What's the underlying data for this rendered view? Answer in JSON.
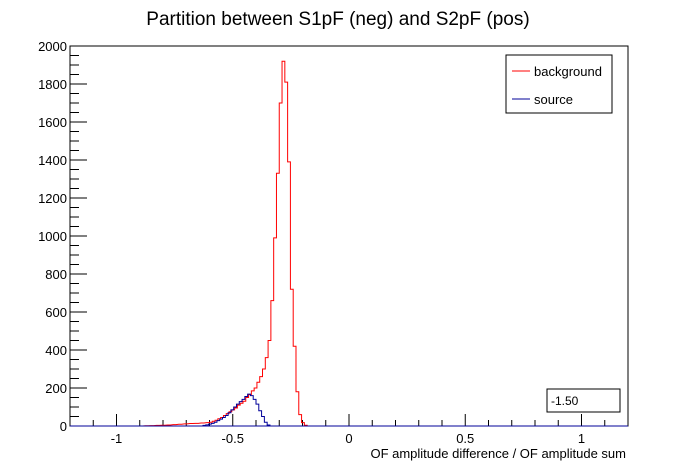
{
  "chart_data": {
    "type": "histogram",
    "title": "Partition between S1pF (neg) and S2pF (pos)",
    "xlabel": "OF amplitude difference / OF amplitude sum",
    "ylabel": "",
    "xlim": [
      -1.2,
      1.2
    ],
    "ylim": [
      0,
      2000
    ],
    "x_ticks": [
      -1,
      -0.5,
      0,
      0.5,
      1
    ],
    "x_tick_labels": [
      "-1",
      "-0.5",
      "0",
      "0.5",
      "1"
    ],
    "y_ticks": [
      0,
      200,
      400,
      600,
      800,
      1000,
      1200,
      1400,
      1600,
      1800,
      2000
    ],
    "y_tick_labels": [
      "0",
      "200",
      "400",
      "600",
      "800",
      "1000",
      "1200",
      "1400",
      "1600",
      "1800",
      "2000"
    ],
    "bin_width": 0.012,
    "legend": {
      "placement": "top-right",
      "entries": [
        "background",
        "source"
      ]
    },
    "annotation": "-1.50",
    "colors": {
      "background": "#ff0000",
      "source": "#000099",
      "axis": "#000000"
    },
    "series": [
      {
        "name": "background",
        "color": "#ff0000",
        "points": [
          [
            -0.9,
            0
          ],
          [
            -0.876,
            1
          ],
          [
            -0.852,
            2
          ],
          [
            -0.828,
            3
          ],
          [
            -0.804,
            4
          ],
          [
            -0.78,
            5
          ],
          [
            -0.756,
            7
          ],
          [
            -0.732,
            9
          ],
          [
            -0.708,
            11
          ],
          [
            -0.684,
            13
          ],
          [
            -0.66,
            14
          ],
          [
            -0.636,
            16
          ],
          [
            -0.612,
            18
          ],
          [
            -0.6,
            20
          ],
          [
            -0.588,
            25
          ],
          [
            -0.576,
            30
          ],
          [
            -0.564,
            38
          ],
          [
            -0.552,
            45
          ],
          [
            -0.54,
            55
          ],
          [
            -0.528,
            65
          ],
          [
            -0.516,
            75
          ],
          [
            -0.504,
            85
          ],
          [
            -0.492,
            95
          ],
          [
            -0.48,
            110
          ],
          [
            -0.468,
            120
          ],
          [
            -0.456,
            130
          ],
          [
            -0.444,
            150
          ],
          [
            -0.432,
            165
          ],
          [
            -0.42,
            185
          ],
          [
            -0.408,
            200
          ],
          [
            -0.396,
            230
          ],
          [
            -0.384,
            260
          ],
          [
            -0.372,
            300
          ],
          [
            -0.36,
            360
          ],
          [
            -0.348,
            450
          ],
          [
            -0.336,
            660
          ],
          [
            -0.324,
            990
          ],
          [
            -0.312,
            1330
          ],
          [
            -0.3,
            1700
          ],
          [
            -0.288,
            1920
          ],
          [
            -0.276,
            1810
          ],
          [
            -0.264,
            1390
          ],
          [
            -0.252,
            720
          ],
          [
            -0.24,
            420
          ],
          [
            -0.228,
            180
          ],
          [
            -0.216,
            60
          ],
          [
            -0.204,
            18
          ],
          [
            -0.192,
            4
          ],
          [
            -0.18,
            0
          ]
        ]
      },
      {
        "name": "source",
        "color": "#000099",
        "points": [
          [
            -0.64,
            0
          ],
          [
            -0.628,
            3
          ],
          [
            -0.616,
            6
          ],
          [
            -0.604,
            10
          ],
          [
            -0.592,
            14
          ],
          [
            -0.58,
            20
          ],
          [
            -0.568,
            28
          ],
          [
            -0.556,
            36
          ],
          [
            -0.544,
            45
          ],
          [
            -0.532,
            55
          ],
          [
            -0.52,
            70
          ],
          [
            -0.508,
            85
          ],
          [
            -0.496,
            100
          ],
          [
            -0.484,
            115
          ],
          [
            -0.472,
            128
          ],
          [
            -0.46,
            140
          ],
          [
            -0.448,
            155
          ],
          [
            -0.436,
            168
          ],
          [
            -0.424,
            160
          ],
          [
            -0.412,
            140
          ],
          [
            -0.4,
            115
          ],
          [
            -0.388,
            80
          ],
          [
            -0.376,
            50
          ],
          [
            -0.364,
            20
          ],
          [
            -0.352,
            5
          ],
          [
            -0.34,
            0
          ]
        ]
      }
    ]
  }
}
